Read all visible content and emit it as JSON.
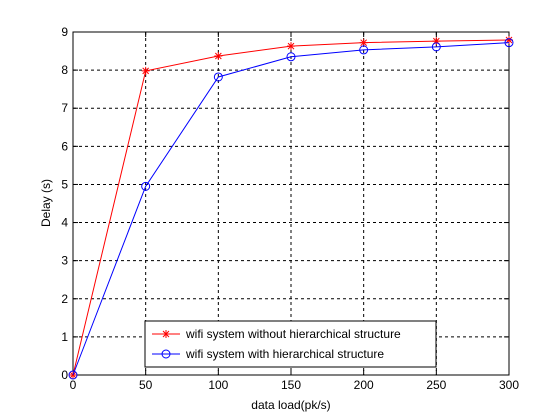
{
  "chart_data": {
    "type": "line",
    "title": "",
    "xlabel": "data load(pk/s)",
    "ylabel": "Delay (s)",
    "xlim": [
      0,
      300
    ],
    "ylim": [
      0,
      9
    ],
    "xticks": [
      0,
      50,
      100,
      150,
      200,
      250,
      300
    ],
    "yticks": [
      0,
      1,
      2,
      3,
      4,
      5,
      6,
      7,
      8,
      9
    ],
    "grid": true,
    "legend_position": "bottom-center",
    "x": [
      0,
      50,
      100,
      150,
      200,
      250,
      300
    ],
    "series": [
      {
        "name": "wifi system without hierarchical structure",
        "values": [
          0,
          7.98,
          8.37,
          8.63,
          8.72,
          8.76,
          8.79
        ],
        "color": "#ff0000",
        "marker": "star"
      },
      {
        "name": "wifi system with hierarchical structure",
        "values": [
          0,
          4.95,
          7.82,
          8.35,
          8.53,
          8.61,
          8.72
        ],
        "color": "#0000ff",
        "marker": "circle"
      }
    ]
  }
}
